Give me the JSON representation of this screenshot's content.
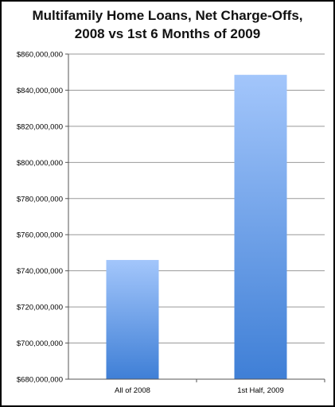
{
  "chart_data": {
    "type": "bar",
    "title_lines": [
      "Multifamily Home Loans, Net Charge-Offs,",
      "2008 vs 1st 6 Months of 2009"
    ],
    "categories": [
      "All of 2008",
      "1st Half, 2009"
    ],
    "values": [
      746000000,
      848500000
    ],
    "ylim": [
      680000000,
      860000000
    ],
    "yticks": [
      680000000,
      700000000,
      720000000,
      740000000,
      760000000,
      780000000,
      800000000,
      820000000,
      840000000,
      860000000
    ],
    "ytick_labels": [
      "$680,000,000",
      "$700,000,000",
      "$720,000,000",
      "$740,000,000",
      "$760,000,000",
      "$780,000,000",
      "$800,000,000",
      "$820,000,000",
      "$840,000,000",
      "$860,000,000"
    ],
    "xlabel": "",
    "ylabel": "",
    "grid": true,
    "colors": {
      "bar_top": "#a3c6fb",
      "bar_bottom": "#3f7fd6",
      "grid": "#999999",
      "axis": "#555555"
    }
  }
}
